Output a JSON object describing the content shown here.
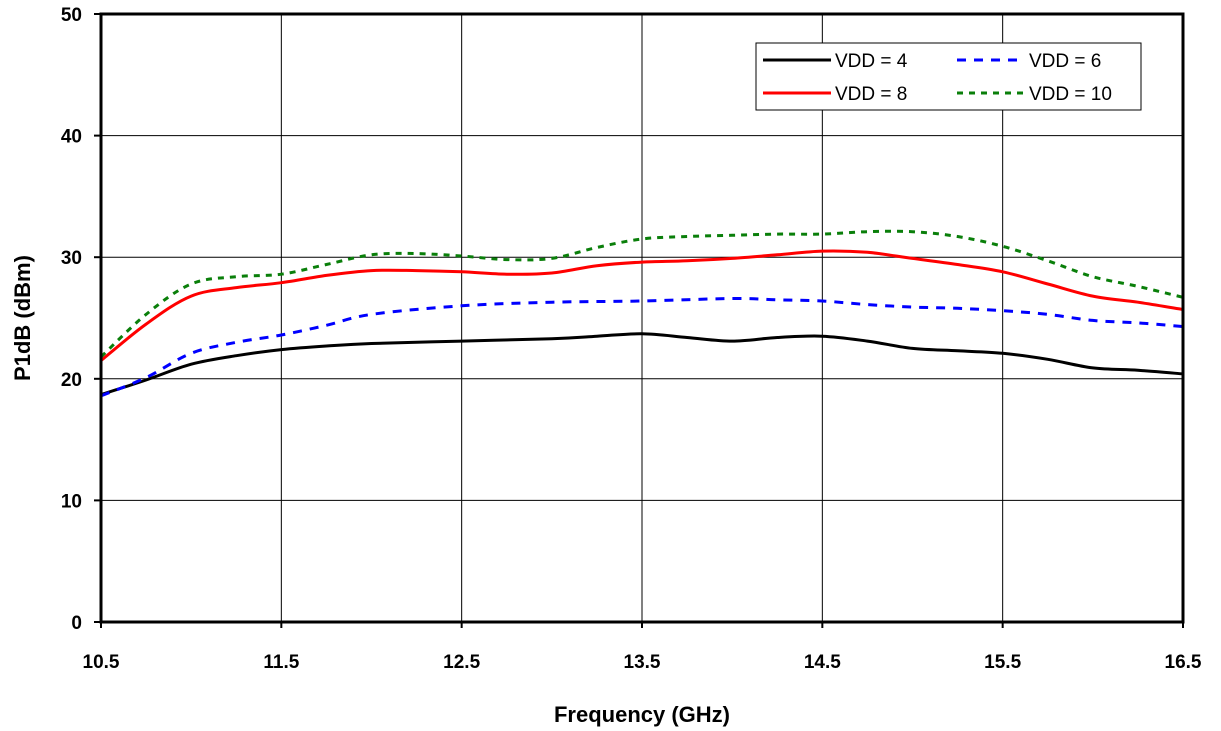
{
  "chart_data": {
    "type": "line",
    "title": "",
    "xlabel": "Frequency (GHz)",
    "ylabel": "P1dB (dBm)",
    "xlim": [
      10.5,
      16.5
    ],
    "ylim": [
      0,
      50
    ],
    "xticks": [
      "10.5",
      "11.5",
      "12.5",
      "13.5",
      "14.5",
      "15.5",
      "16.5"
    ],
    "yticks": [
      "0",
      "10",
      "20",
      "30",
      "40",
      "50"
    ],
    "grid": true,
    "legend_position": "top-right",
    "series": [
      {
        "name": "VDD = 4",
        "color": "#000000",
        "dash": "solid",
        "x": [
          10.5,
          10.75,
          11.0,
          11.25,
          11.5,
          11.75,
          12.0,
          12.5,
          13.0,
          13.25,
          13.5,
          13.75,
          14.0,
          14.25,
          14.5,
          14.75,
          15.0,
          15.25,
          15.5,
          15.75,
          16.0,
          16.25,
          16.5
        ],
        "y": [
          18.7,
          19.9,
          21.2,
          21.9,
          22.4,
          22.7,
          22.9,
          23.1,
          23.3,
          23.5,
          23.7,
          23.4,
          23.1,
          23.4,
          23.5,
          23.1,
          22.5,
          22.3,
          22.1,
          21.6,
          20.9,
          20.7,
          20.4
        ]
      },
      {
        "name": "VDD = 6",
        "color": "#0000ff",
        "dash": "dash",
        "x": [
          10.5,
          10.75,
          11.0,
          11.25,
          11.5,
          11.75,
          12.0,
          12.5,
          13.0,
          13.5,
          14.0,
          14.25,
          14.5,
          14.75,
          15.0,
          15.25,
          15.5,
          15.75,
          16.0,
          16.25,
          16.5
        ],
        "y": [
          18.6,
          20.1,
          22.1,
          23.0,
          23.6,
          24.4,
          25.3,
          26.0,
          26.3,
          26.4,
          26.6,
          26.5,
          26.4,
          26.1,
          25.9,
          25.8,
          25.6,
          25.3,
          24.8,
          24.6,
          24.3
        ]
      },
      {
        "name": "VDD = 8",
        "color": "#ff0000",
        "dash": "solid",
        "x": [
          10.5,
          10.75,
          11.0,
          11.25,
          11.5,
          11.75,
          12.0,
          12.25,
          12.5,
          12.75,
          13.0,
          13.25,
          13.5,
          13.75,
          14.0,
          14.25,
          14.5,
          14.75,
          15.0,
          15.25,
          15.5,
          15.75,
          16.0,
          16.25,
          16.5
        ],
        "y": [
          21.5,
          24.5,
          26.8,
          27.5,
          27.9,
          28.5,
          28.9,
          28.9,
          28.8,
          28.6,
          28.7,
          29.3,
          29.6,
          29.7,
          29.9,
          30.2,
          30.5,
          30.4,
          29.9,
          29.4,
          28.8,
          27.8,
          26.8,
          26.3,
          25.7
        ]
      },
      {
        "name": "VDD = 10",
        "color": "#0a7f0a",
        "dash": "dot",
        "x": [
          10.5,
          10.75,
          11.0,
          11.25,
          11.5,
          11.75,
          12.0,
          12.25,
          12.5,
          12.75,
          13.0,
          13.25,
          13.5,
          13.75,
          14.0,
          14.25,
          14.5,
          14.75,
          15.0,
          15.25,
          15.5,
          15.75,
          16.0,
          16.25,
          16.5
        ],
        "y": [
          21.8,
          25.3,
          27.8,
          28.4,
          28.6,
          29.4,
          30.2,
          30.3,
          30.1,
          29.8,
          29.9,
          30.8,
          31.5,
          31.7,
          31.8,
          31.9,
          31.9,
          32.1,
          32.1,
          31.7,
          30.9,
          29.7,
          28.4,
          27.6,
          26.7
        ]
      }
    ]
  }
}
